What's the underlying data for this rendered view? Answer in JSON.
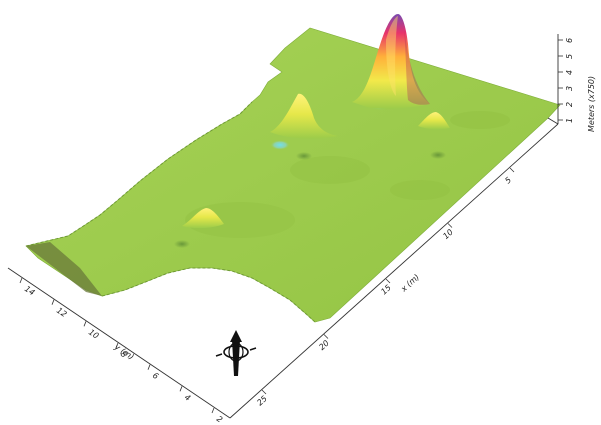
{
  "chart_data": {
    "type": "surface",
    "x_axis": {
      "label": "x (m)",
      "ticks": [
        "5",
        "10",
        "15",
        "20",
        "25"
      ]
    },
    "y_axis": {
      "label": "y (m)",
      "ticks": [
        "2",
        "4",
        "6",
        "8",
        "10",
        "12",
        "14"
      ]
    },
    "z_axis": {
      "label": "Meters (x750)",
      "ticks": [
        "1",
        "2",
        "3",
        "4",
        "5",
        "6"
      ]
    },
    "base_color": "#9ccc4a",
    "colormap": [
      "#55d8e6",
      "#9ccc4a",
      "#f2e94a",
      "#ff9a2e",
      "#e8336a",
      "#7a4ab0"
    ],
    "peaks": [
      {
        "x": 3.5,
        "y": 9.5,
        "z": 5.6,
        "color": "#e8336a"
      },
      {
        "x": 4.8,
        "y": 5.6,
        "z": 2.2,
        "color": "#f2e94a"
      },
      {
        "x": 10.2,
        "y": 3.0,
        "z": 0.9,
        "color": "#f2e94a"
      },
      {
        "x": 5.0,
        "y": 11.6,
        "z": 0.8,
        "color": "#f2e94a"
      }
    ],
    "depressions": [
      {
        "x": 4.0,
        "y": 9.8,
        "z": -0.6
      },
      {
        "x": 6.3,
        "y": 5.2,
        "z": -0.5
      },
      {
        "x": 7.4,
        "y": 6.2,
        "z": -0.3
      }
    ]
  },
  "compass_icon": "north-arrow-icon"
}
